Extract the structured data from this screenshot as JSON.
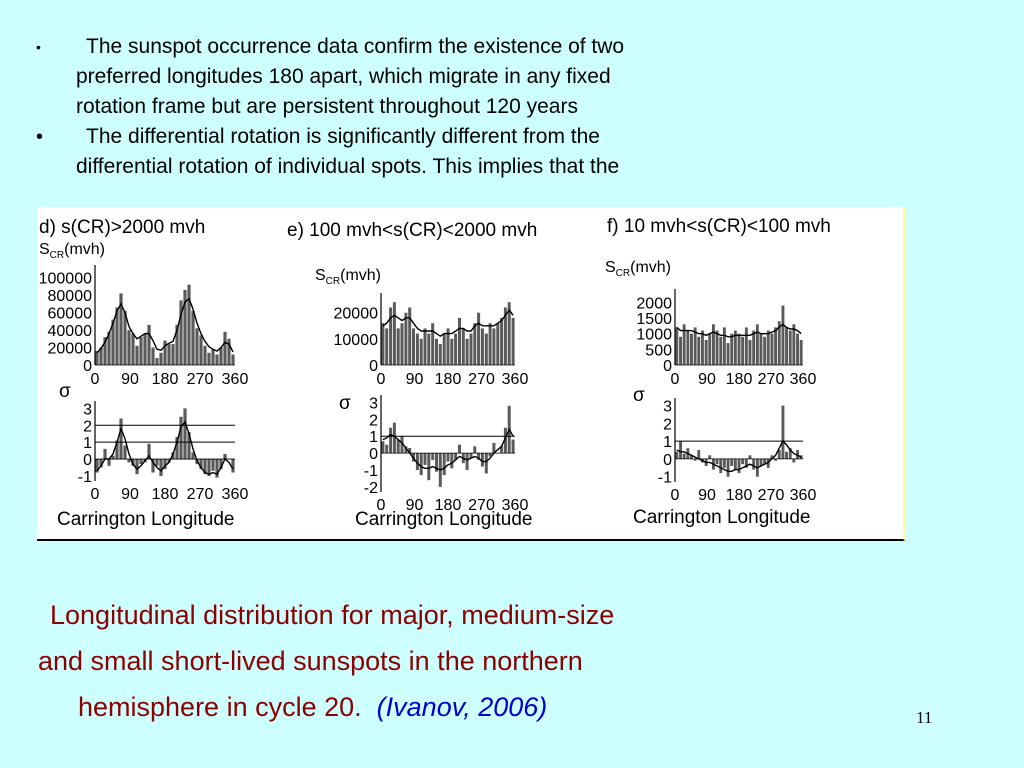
{
  "bullets": [
    {
      "symbol": "•",
      "lines": [
        "The sunspot occurrence data confirm the existence of two",
        "preferred longitudes 180 apart, which migrate in any fixed",
        "rotation frame but are persistent throughout 120 years"
      ]
    },
    {
      "symbol": "•",
      "lines": [
        "The differential rotation is significantly different from the",
        "differential rotation of individual spots. This implies that the"
      ]
    }
  ],
  "caption": {
    "line1": "Longitudinal distribution  for major, medium-size",
    "line2": "and small short-lived sunspots in the northern",
    "line3": "hemisphere in cycle 20.",
    "citation": "(Ivanov, 2006)"
  },
  "page_number": "11",
  "chart_data": [
    {
      "type": "bar",
      "title": "d) s(CR)>2000 mvh",
      "panel": "top",
      "ylabel": "S_CR(mvh)",
      "xlabel": "",
      "xticks": [
        "0",
        "90",
        "180",
        "270",
        "360"
      ],
      "yticks": [
        "0",
        "20000",
        "40000",
        "60000",
        "80000",
        "100000"
      ],
      "ylim": [
        0,
        110000
      ],
      "bar_values": [
        16000,
        20000,
        32000,
        38000,
        52000,
        66000,
        82000,
        62000,
        40000,
        36000,
        22000,
        32000,
        36000,
        46000,
        20000,
        8000,
        14000,
        28000,
        24000,
        24000,
        46000,
        74000,
        86000,
        92000,
        62000,
        42000,
        34000,
        22000,
        14000,
        18000,
        12000,
        20000,
        38000,
        30000,
        12000
      ],
      "smoothed": [
        14000,
        19000,
        26000,
        36000,
        48000,
        62000,
        70000,
        60000,
        44000,
        36000,
        30000,
        33000,
        36000,
        36000,
        28000,
        18000,
        17000,
        22000,
        25000,
        27000,
        40000,
        58000,
        72000,
        76000,
        64000,
        48000,
        36000,
        27000,
        21000,
        18000,
        16000,
        20000,
        26000,
        24000,
        15000
      ],
      "colors": {
        "bars": "#555555",
        "line": "#000000"
      }
    },
    {
      "type": "bar",
      "panel": "bottom",
      "ylabel": "σ",
      "xlabel": "Carrington Longitude",
      "xticks": [
        "0",
        "90",
        "180",
        "270",
        "360"
      ],
      "yticks": [
        "-1",
        "0",
        "1",
        "2",
        "3"
      ],
      "ylim": [
        -1.3,
        3.2
      ],
      "hlines": [
        1,
        2
      ],
      "bar_values": [
        -0.8,
        -0.5,
        0.6,
        -0.4,
        0.2,
        1.1,
        2.4,
        0.8,
        -0.2,
        -0.4,
        -0.9,
        -0.3,
        -0.2,
        0.9,
        -0.8,
        -0.4,
        -1.0,
        -0.6,
        -0.2,
        0.4,
        1.3,
        2.5,
        3.0,
        1.6,
        0.4,
        -0.3,
        -0.6,
        -0.9,
        -1.0,
        -0.7,
        -1.1,
        -0.6,
        0.3,
        0.0,
        -0.8
      ],
      "smoothed": [
        -0.7,
        -0.4,
        0.0,
        0.0,
        0.3,
        1.0,
        1.8,
        1.2,
        0.3,
        -0.3,
        -0.6,
        -0.4,
        -0.1,
        0.2,
        -0.2,
        -0.5,
        -0.7,
        -0.4,
        -0.2,
        0.3,
        1.0,
        1.9,
        2.2,
        1.5,
        0.6,
        -0.1,
        -0.5,
        -0.8,
        -0.9,
        -0.8,
        -0.9,
        -0.5,
        0.0,
        -0.2,
        -0.6
      ]
    },
    {
      "type": "bar",
      "title": "e) 100 mvh<s(CR)<2000 mvh",
      "panel": "top",
      "ylabel": "S_CR(mvh)",
      "xlabel": "",
      "xticks": [
        "0",
        "90",
        "180",
        "270",
        "360"
      ],
      "yticks": [
        "0",
        "10000",
        "20000"
      ],
      "ylim": [
        0,
        26000
      ],
      "bar_values": [
        16000,
        14000,
        22000,
        24000,
        14000,
        16000,
        20000,
        22000,
        14000,
        12000,
        10000,
        14000,
        12000,
        16000,
        10000,
        8000,
        12000,
        14000,
        10000,
        12000,
        18000,
        14000,
        10000,
        12000,
        16000,
        20000,
        14000,
        12000,
        16000,
        14000,
        16000,
        18000,
        22000,
        24000,
        18000
      ],
      "smoothed": [
        15000,
        16000,
        18000,
        19000,
        18000,
        17000,
        18000,
        18000,
        16000,
        14000,
        13000,
        13000,
        13000,
        13000,
        12000,
        11000,
        12000,
        12000,
        12000,
        13000,
        14000,
        14000,
        13000,
        13000,
        15000,
        16000,
        15000,
        15000,
        15000,
        15000,
        16000,
        17000,
        19000,
        21000,
        19000
      ]
    },
    {
      "type": "bar",
      "panel": "bottom",
      "ylabel": "σ",
      "xlabel": "Carrington Longitude",
      "xticks": [
        "0",
        "90",
        "180",
        "270",
        "360"
      ],
      "yticks": [
        "-2",
        "-1",
        "0",
        "1",
        "2",
        "3"
      ],
      "ylim": [
        -2.3,
        3.2
      ],
      "hlines": [
        1
      ],
      "bar_values": [
        0.7,
        0.5,
        1.5,
        1.8,
        0.8,
        1.0,
        0.4,
        0.3,
        -0.5,
        -1.0,
        -1.3,
        -0.7,
        -1.6,
        -0.4,
        -1.1,
        -2.0,
        -1.3,
        -0.5,
        -0.9,
        -0.4,
        0.5,
        -0.6,
        -1.0,
        -0.3,
        0.4,
        -0.4,
        -0.8,
        -1.2,
        -0.2,
        0.6,
        0.0,
        0.4,
        1.5,
        2.8,
        0.8
      ],
      "smoothed": [
        0.8,
        0.9,
        1.1,
        1.0,
        0.8,
        0.6,
        0.3,
        0.0,
        -0.3,
        -0.6,
        -0.8,
        -0.9,
        -0.9,
        -0.8,
        -0.9,
        -1.0,
        -0.9,
        -0.7,
        -0.6,
        -0.4,
        -0.2,
        -0.3,
        -0.4,
        -0.3,
        -0.2,
        -0.3,
        -0.5,
        -0.5,
        -0.3,
        0.0,
        0.2,
        0.4,
        0.9,
        1.4,
        1.0
      ]
    },
    {
      "type": "bar",
      "title": "f) 10 mvh<s(CR)<100 mvh",
      "panel": "top",
      "ylabel": "S_CR(mvh)",
      "xlabel": "",
      "xticks": [
        "0",
        "90",
        "180",
        "270",
        "360"
      ],
      "yticks": [
        "0",
        "500",
        "1000",
        "1500",
        "2000"
      ],
      "ylim": [
        0,
        2300
      ],
      "bar_values": [
        1200,
        900,
        1300,
        1100,
        1000,
        1200,
        900,
        1100,
        800,
        1000,
        1300,
        1100,
        900,
        1200,
        700,
        1000,
        1100,
        1000,
        900,
        1200,
        800,
        1100,
        1300,
        1000,
        900,
        1100,
        1000,
        1200,
        1400,
        1900,
        1200,
        1100,
        1300,
        1000,
        800
      ],
      "smoothed": [
        1200,
        1100,
        1100,
        1100,
        1100,
        1050,
        1000,
        1000,
        950,
        1000,
        1050,
        1000,
        950,
        950,
        900,
        900,
        950,
        950,
        950,
        950,
        950,
        1000,
        1050,
        1000,
        1000,
        1000,
        1050,
        1100,
        1200,
        1300,
        1200,
        1150,
        1150,
        1100,
        1000
      ]
    },
    {
      "type": "bar",
      "panel": "bottom",
      "ylabel": "σ",
      "xlabel": "Carrington Longitude",
      "xticks": [
        "0",
        "90",
        "180",
        "270",
        "360"
      ],
      "yticks": [
        "-1",
        "0",
        "1",
        "2",
        "3"
      ],
      "ylim": [
        -1.3,
        3.2
      ],
      "hlines": [
        1
      ],
      "bar_values": [
        0.4,
        1.0,
        0.3,
        0.6,
        0.2,
        -0.1,
        0.5,
        -0.2,
        -0.4,
        0.2,
        -0.6,
        -0.3,
        -0.8,
        -0.5,
        -1.0,
        -0.4,
        -0.6,
        -0.8,
        -0.3,
        -0.5,
        0.2,
        -0.6,
        -1.0,
        -0.4,
        -0.3,
        -0.5,
        0.2,
        -0.1,
        0.5,
        3.0,
        0.4,
        0.6,
        -0.2,
        0.5,
        0.2
      ],
      "smoothed": [
        0.5,
        0.4,
        0.4,
        0.3,
        0.2,
        0.1,
        0.0,
        -0.1,
        -0.2,
        -0.2,
        -0.3,
        -0.4,
        -0.5,
        -0.6,
        -0.7,
        -0.7,
        -0.6,
        -0.6,
        -0.5,
        -0.4,
        -0.3,
        -0.4,
        -0.5,
        -0.4,
        -0.3,
        -0.2,
        0.0,
        0.2,
        0.6,
        1.0,
        0.8,
        0.5,
        0.3,
        0.2,
        0.1
      ]
    }
  ]
}
